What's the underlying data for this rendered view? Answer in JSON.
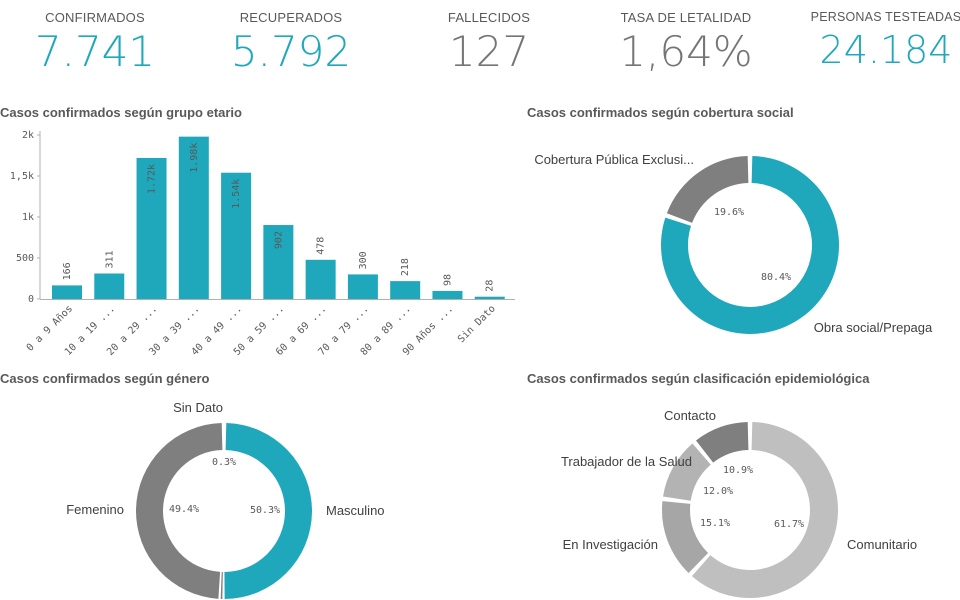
{
  "kpis": [
    {
      "label": "CONFIRMADOS",
      "value": "7.741",
      "color": "#1fa8bc"
    },
    {
      "label": "RECUPERADOS",
      "value": "5.792",
      "color": "#1fa8bc"
    },
    {
      "label": "FALLECIDOS",
      "value": "127",
      "color": "#757575"
    },
    {
      "label": "TASA DE LETALIDAD",
      "value": "1,64%",
      "color": "#757575"
    },
    {
      "label": "PERSONAS TESTEADAS",
      "value": "24.184",
      "color": "#1fa8bc"
    }
  ],
  "panels": {
    "age_title": "Casos confirmados según grupo etario",
    "coverage_title": "Casos confirmados según cobertura social",
    "gender_title": "Casos confirmados según género",
    "epi_title": "Casos confirmados según clasificación epidemiológica"
  },
  "chart_data": [
    {
      "type": "bar",
      "title": "Casos confirmados según grupo etario",
      "categories": [
        "0 a 9 Años",
        "10 a 19 ...",
        "20 a 29 ...",
        "30 a 39 ...",
        "40 a 49 ...",
        "50 a 59 ...",
        "60 a 69 ...",
        "70 a 79 ...",
        "80 a 89 ...",
        "90 Años ...",
        "Sin Dato"
      ],
      "values": [
        166,
        311,
        1720,
        1980,
        1540,
        902,
        478,
        300,
        218,
        98,
        28
      ],
      "value_labels": [
        "166",
        "311",
        "1.72k",
        "1.98k",
        "1.54k",
        "902",
        "478",
        "300",
        "218",
        "98",
        "28"
      ],
      "yticks": [
        "0",
        "500",
        "1k",
        "1,5k",
        "2k"
      ],
      "ylim": [
        0,
        2000
      ],
      "color": "#1fa8bc"
    },
    {
      "type": "pie",
      "title": "Casos confirmados según cobertura social",
      "slices": [
        {
          "label": "Obra social/Prepaga",
          "value": 80.4,
          "display": "80.4%",
          "color": "#1fa8bc"
        },
        {
          "label": "Cobertura Pública Exclusi...",
          "value": 19.6,
          "display": "19.6%",
          "color": "#7f7f7f"
        }
      ]
    },
    {
      "type": "pie",
      "title": "Casos confirmados según género",
      "slices": [
        {
          "label": "Masculino",
          "value": 50.3,
          "display": "50.3%",
          "color": "#1fa8bc"
        },
        {
          "label": "Sin Dato",
          "value": 0.3,
          "display": "0.3%",
          "color": "#7f7f7f"
        },
        {
          "label": "Femenino",
          "value": 49.4,
          "display": "49.4%",
          "color": "#7f7f7f"
        }
      ]
    },
    {
      "type": "pie",
      "title": "Casos confirmados según clasificación epidemiológica",
      "slices": [
        {
          "label": "Comunitario",
          "value": 61.7,
          "display": "61.7%",
          "color": "#bfbfbf"
        },
        {
          "label": "En Investigación",
          "value": 15.1,
          "display": "15.1%",
          "color": "#a6a6a6"
        },
        {
          "label": "Trabajador de la Salud",
          "value": 12.0,
          "display": "12.0%",
          "color": "#b3b3b3"
        },
        {
          "label": "Contacto",
          "value": 10.9,
          "display": "10.9%",
          "color": "#7f7f7f"
        }
      ]
    }
  ]
}
